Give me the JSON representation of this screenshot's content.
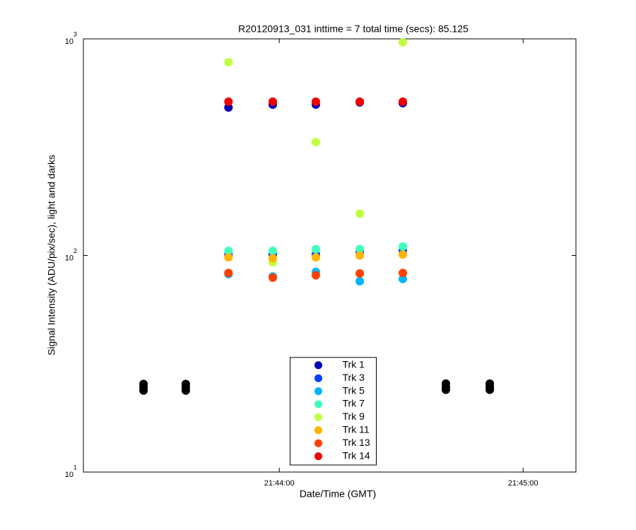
{
  "chart_data": {
    "type": "scatter",
    "title": "R20120913_031 inttime = 7 total time (secs): 85.125",
    "x_label": "Date/Time (GMT)",
    "y_label": "Signal Intensity (ADU/pix/sec), light and darks",
    "log_y": true,
    "grid": false,
    "legend": "lower center",
    "xlim": [
      78191.8,
      78313
    ],
    "xticks": [
      {
        "value": 78240,
        "label": "21:44:00"
      },
      {
        "value": 78300,
        "label": "21:45:00"
      }
    ],
    "ylim": [
      10,
      1000
    ],
    "yticks": [
      {
        "value": 10,
        "label": "10",
        "exponent": "1"
      },
      {
        "value": 100,
        "label": "10",
        "exponent": "2"
      },
      {
        "value": 1000,
        "label": "10",
        "exponent": "3"
      }
    ],
    "series": [
      {
        "color": "#000000",
        "x": [
          78206.6,
          78206.6,
          78206.6,
          78217.0,
          78217.0,
          78217.0,
          78281.0,
          78281.0,
          78281.0,
          78291.8,
          78291.8,
          78291.8
        ],
        "values": [
          25.5,
          24.6,
          23.8,
          25.5,
          24.6,
          23.8,
          25.6,
          24.7,
          24.0,
          25.6,
          24.7,
          24.0
        ]
      },
      {
        "name": "Trk 1",
        "color": "#0000b4",
        "x": [
          78227.5,
          78238.4,
          78249.0,
          78259.8,
          78270.4
        ],
        "values": [
          482,
          497,
          497,
          509,
          505
        ]
      },
      {
        "name": "Trk 3",
        "color": "#0040ff",
        "x": [
          78227.5,
          78238.4,
          78249.0,
          78259.8,
          78270.4
        ],
        "values": [
          101,
          101,
          101,
          104,
          105
        ]
      },
      {
        "name": "Trk 5",
        "color": "#00b4ff",
        "x": [
          78227.5,
          78238.4,
          78249.0,
          78259.8,
          78270.4
        ],
        "values": [
          82,
          80,
          84,
          76,
          78
        ]
      },
      {
        "name": "Trk 7",
        "color": "#40ffbf",
        "x": [
          78227.5,
          78238.4,
          78249.0,
          78259.8,
          78270.4
        ],
        "values": [
          105,
          105,
          107,
          107,
          110
        ]
      },
      {
        "name": "Trk 9",
        "color": "#bfff40",
        "x": [
          78227.5,
          78238.4,
          78249.0,
          78259.8,
          78270.4
        ],
        "values": [
          780,
          93,
          334,
          156,
          964
        ]
      },
      {
        "name": "Trk 11",
        "color": "#ffb400",
        "x": [
          78227.5,
          78238.4,
          78249.0,
          78259.8,
          78270.4
        ],
        "values": [
          98,
          97,
          98,
          100,
          101
        ]
      },
      {
        "name": "Trk 13",
        "color": "#ff4000",
        "x": [
          78227.5,
          78238.4,
          78249.0,
          78259.8,
          78270.4
        ],
        "values": [
          83,
          79,
          81,
          82.6,
          83
        ]
      },
      {
        "name": "Trk 14",
        "color": "#f00000",
        "x": [
          78227.5,
          78238.4,
          78249.0,
          78259.8,
          78270.4
        ],
        "values": [
          513,
          513,
          513,
          513,
          513
        ]
      }
    ]
  }
}
